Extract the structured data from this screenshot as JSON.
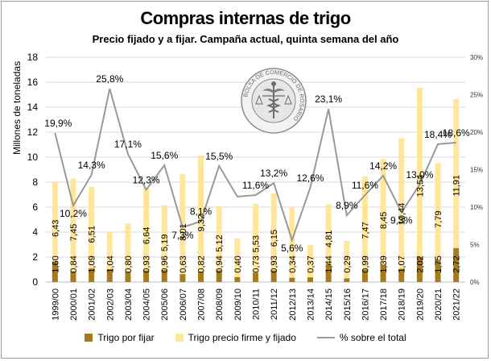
{
  "title": "Compras internas de trigo",
  "subtitle": "Precio fijado y a fijar. Campaña actual, quinta semana del año",
  "ylabel": "Millones de toneladas",
  "logo_text": "BOLSA DE COMERCIO DE ROSARIO",
  "colors": {
    "fijar": "#a57c1b",
    "fijado": "#ffe699",
    "line": "#999999",
    "grid": "#d9d9d9"
  },
  "legend": [
    "Trigo por fijar",
    "Trigo precio firme y fijado",
    "% sobre el total"
  ],
  "chart_data": {
    "type": "bar",
    "stacked": true,
    "categories": [
      "1999/00",
      "2000/01",
      "2001/02",
      "2002/03",
      "2003/04",
      "2004/05",
      "2005/06",
      "2006/07",
      "2007/08",
      "2008/09",
      "2009/10",
      "2010/11",
      "2011/12",
      "2012/13",
      "2013/14",
      "2014/15",
      "2015/16",
      "2016/17",
      "2017/18",
      "2018/19",
      "2019/20",
      "2020/21",
      "2021/22"
    ],
    "series": [
      {
        "name": "Trigo por fijar",
        "values": [
          1.6,
          0.84,
          1.09,
          1.04,
          0.8,
          0.93,
          0.96,
          0.63,
          0.82,
          0.94,
          0.4,
          0.73,
          0.93,
          0.34,
          0.37,
          1.44,
          0.29,
          0.99,
          1.39,
          1.07,
          2.02,
          1.75,
          2.72
        ],
        "labels": [
          "1,60",
          "0,84",
          "1,09",
          "1,04",
          "0,80",
          "0,93",
          "0,96",
          "0,63",
          "0,82",
          "0,94",
          "0,40",
          "0,73",
          "0,93",
          "0,34",
          "0,37",
          "1,44",
          "0,29",
          "0,99",
          "1,39",
          "1,07",
          "2,02",
          "1,75",
          "2,72"
        ]
      },
      {
        "name": "Trigo precio firme y fijado",
        "values": [
          6.43,
          7.45,
          6.51,
          3.0,
          3.9,
          6.64,
          5.19,
          8.01,
          9.32,
          5.12,
          3.1,
          5.53,
          6.15,
          5.6,
          2.6,
          4.81,
          3.0,
          7.47,
          8.45,
          10.44,
          13.54,
          7.79,
          11.91
        ],
        "labels": [
          "6,43",
          "7,45",
          "6,51",
          "",
          "",
          "6,64",
          "5,19",
          "8,01",
          "9,32",
          "5,12",
          "",
          "5,53",
          "6,15",
          "",
          "",
          "4,81",
          "",
          "7,47",
          "8,45",
          "10,44",
          "13,54",
          "7,79",
          "11,91"
        ]
      },
      {
        "name": "% sobre el total",
        "axis": "right",
        "values": [
          19.9,
          10.2,
          14.3,
          25.8,
          17.1,
          12.3,
          15.6,
          7.3,
          8.1,
          15.5,
          11.4,
          11.6,
          13.2,
          5.6,
          12.6,
          23.1,
          8.9,
          11.6,
          14.2,
          9.3,
          13.0,
          18.4,
          18.6
        ],
        "labels": [
          "19,9%",
          "10,2%",
          "14,3%",
          "25,8%",
          "17,1%",
          "12,3%",
          "15,6%",
          "7,3%",
          "8,1%",
          "15,5%",
          "",
          "11,6%",
          "13,2%",
          "5,6%",
          "12,6%",
          "23,1%",
          "8,9%",
          "11,6%",
          "14,2%",
          "9,3%",
          "13,0%",
          "18,4%",
          "18,6%"
        ]
      }
    ],
    "ylim": [
      0,
      18
    ],
    "yticks": [
      0,
      2,
      4,
      6,
      8,
      10,
      12,
      14,
      16,
      18
    ],
    "y2lim": [
      0,
      30
    ],
    "y2ticks": [
      "0%",
      "5%",
      "10%",
      "15%",
      "20%",
      "25%",
      "30%"
    ],
    "grid": true,
    "legend_position": "bottom"
  }
}
